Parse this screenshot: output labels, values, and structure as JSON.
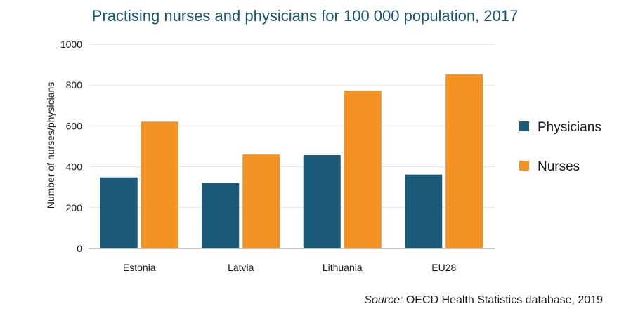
{
  "chart_data": {
    "type": "bar",
    "title": "Practising nurses and physicians for 100 000 population, 2017",
    "xlabel": "",
    "ylabel": "Number of nurses/physicians",
    "ylim": [
      0,
      1000
    ],
    "yticks": [
      0,
      200,
      400,
      600,
      800,
      1000
    ],
    "grid": true,
    "legend_position": "right",
    "categories": [
      "Estonia",
      "Latvia",
      "Lithuania",
      "EU28"
    ],
    "series": [
      {
        "name": "Physicians",
        "color": "#1b5a79",
        "values": [
          348,
          321,
          457,
          362
        ]
      },
      {
        "name": "Nurses",
        "color": "#f39222",
        "values": [
          621,
          460,
          773,
          852
        ]
      }
    ]
  },
  "source": {
    "prefix": "Source:",
    "text": " OECD Health Statistics database, 2019"
  }
}
